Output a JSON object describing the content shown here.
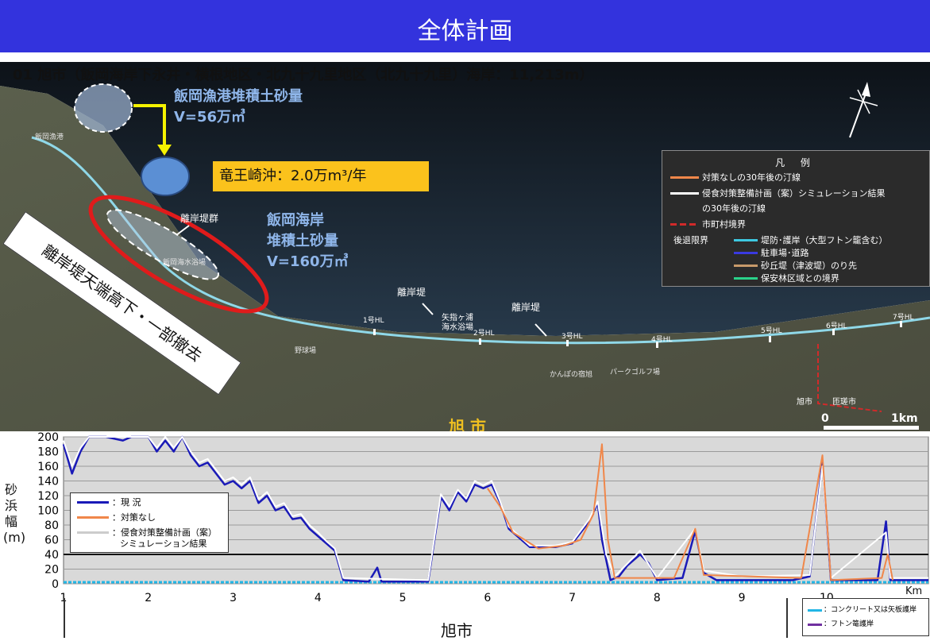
{
  "header": {
    "title": "全体計画"
  },
  "subtitle": "01 旭市（飯岡海岸下永井・横根地区・北九十九里地区（北九十九里）海岸：11,213m）",
  "map": {
    "iioka_port_volume_title": "飯岡漁港堆積土砂量",
    "iioka_port_volume_value": "V=56万㎥",
    "ryuozaki_offshore": "竜王崎沖：2.0万m³/年",
    "iioka_coast_title": "飯岡海岸",
    "iioka_coast_line2": "堆積土砂量",
    "iioka_coast_value": "V=160万㎥",
    "breakwater_group": "離岸堤群",
    "breakwater_note": "離岸堤天端高下・一部撤去",
    "breakwater_label_1": "離岸堤",
    "breakwater_label_2": "離岸堤",
    "place_iioka_port": "飯岡漁港",
    "place_beach": "飯岡海水浴場",
    "place_yasashi": "矢指ヶ浦",
    "place_yasashi_2": "海水浴場",
    "place_baseball": "野球場",
    "place_kanpo": "かんぽの宿旭",
    "place_park_golf": "パークゴルフ場",
    "place_asahi": "旭市",
    "place_sosa": "匝瑳市",
    "place_asahi_big": "旭 市",
    "hl_labels": [
      "1号HL",
      "2号HL",
      "3号HL",
      "4号HL",
      "5号HL",
      "6号HL",
      "7号HL"
    ],
    "scale_zero": "0",
    "scale_one": "1km"
  },
  "legend": {
    "title": "凡 例",
    "item1": "対策なしの30年後の汀線",
    "item2": "侵食対策整備計画（案）シミュレーション結果",
    "item2b": "の30年後の汀線",
    "item3": "市町村境界",
    "retreat_label": "後退限界",
    "item4": "堤防･護岸（大型フトン籠含む）",
    "item5": "駐車場･道路",
    "item6": "砂丘堤（津波堤）のり先",
    "item7": "保安林区域との境界",
    "colors": {
      "no_measures": "#f0874a",
      "simulation": "#ffffff",
      "boundary": "#d12a2a",
      "seawall": "#3ec8e0",
      "parking": "#3a3ae0",
      "dune": "#c89a6a",
      "forest": "#2ad28a"
    }
  },
  "chart_data": {
    "type": "line",
    "ylabel": "砂浜幅(m)",
    "xlabel": "旭市",
    "x_unit": "Km",
    "xlim": [
      1,
      11.2
    ],
    "ylim": [
      0,
      200
    ],
    "yticks": [
      0,
      20,
      40,
      60,
      80,
      100,
      120,
      140,
      160,
      180,
      200
    ],
    "xticks": [
      1,
      2,
      3,
      4,
      5,
      6,
      7,
      8,
      9,
      10
    ],
    "reference_line": 40,
    "legend": [
      "：現 況",
      "：対策なし",
      "：侵食対策整備計画（案）",
      "シミュレーション結果"
    ],
    "series": [
      {
        "name": "現 況",
        "color": "#1a1ab8",
        "points": [
          [
            1,
            190
          ],
          [
            1.1,
            150
          ],
          [
            1.2,
            180
          ],
          [
            1.3,
            200
          ],
          [
            1.5,
            210
          ],
          [
            1.7,
            195
          ],
          [
            1.8,
            220
          ],
          [
            2.0,
            210
          ],
          [
            2.1,
            180
          ],
          [
            2.2,
            195
          ],
          [
            2.3,
            180
          ],
          [
            2.4,
            200
          ],
          [
            2.5,
            175
          ],
          [
            2.6,
            160
          ],
          [
            2.7,
            165
          ],
          [
            2.8,
            150
          ],
          [
            2.9,
            135
          ],
          [
            3.0,
            140
          ],
          [
            3.1,
            130
          ],
          [
            3.2,
            140
          ],
          [
            3.3,
            110
          ],
          [
            3.4,
            120
          ],
          [
            3.5,
            100
          ],
          [
            3.6,
            105
          ],
          [
            3.7,
            88
          ],
          [
            3.8,
            90
          ],
          [
            3.9,
            75
          ],
          [
            4.0,
            65
          ],
          [
            4.1,
            55
          ],
          [
            4.2,
            45
          ],
          [
            4.3,
            5
          ],
          [
            4.6,
            3
          ],
          [
            4.7,
            22
          ],
          [
            4.75,
            3
          ],
          [
            5.3,
            3
          ],
          [
            5.45,
            118
          ],
          [
            5.55,
            100
          ],
          [
            5.65,
            125
          ],
          [
            5.75,
            112
          ],
          [
            5.85,
            135
          ],
          [
            5.95,
            130
          ],
          [
            6.05,
            135
          ],
          [
            6.15,
            110
          ],
          [
            6.25,
            75
          ],
          [
            6.5,
            50
          ],
          [
            6.8,
            50
          ],
          [
            7.0,
            55
          ],
          [
            7.2,
            85
          ],
          [
            7.3,
            110
          ],
          [
            7.35,
            60
          ],
          [
            7.45,
            5
          ],
          [
            7.55,
            10
          ],
          [
            7.65,
            25
          ],
          [
            7.8,
            40
          ],
          [
            7.9,
            28
          ],
          [
            8.0,
            5
          ],
          [
            8.3,
            8
          ],
          [
            8.45,
            72
          ],
          [
            8.55,
            15
          ],
          [
            8.7,
            5
          ],
          [
            9.6,
            5
          ],
          [
            9.8,
            10
          ],
          [
            9.95,
            165
          ],
          [
            10.05,
            5
          ],
          [
            10.6,
            5
          ],
          [
            10.7,
            85
          ],
          [
            10.75,
            5
          ],
          [
            11.2,
            5
          ]
        ]
      },
      {
        "name": "対策なし",
        "color": "#f0874a",
        "points": [
          [
            6.0,
            130
          ],
          [
            6.15,
            105
          ],
          [
            6.3,
            70
          ],
          [
            6.6,
            48
          ],
          [
            6.9,
            52
          ],
          [
            7.1,
            60
          ],
          [
            7.25,
            95
          ],
          [
            7.35,
            190
          ],
          [
            7.42,
            60
          ],
          [
            7.5,
            8
          ],
          [
            8.2,
            8
          ],
          [
            8.45,
            75
          ],
          [
            8.55,
            12
          ],
          [
            9.7,
            8
          ],
          [
            9.95,
            175
          ],
          [
            10.05,
            5
          ],
          [
            10.65,
            8
          ],
          [
            10.72,
            40
          ],
          [
            10.78,
            5
          ]
        ]
      },
      {
        "name": "侵食対策整備計画（案） シミュレーション結果",
        "color": "#ffffff",
        "points": [
          [
            1,
            195
          ],
          [
            1.1,
            160
          ],
          [
            1.2,
            185
          ],
          [
            1.3,
            205
          ],
          [
            1.5,
            215
          ],
          [
            1.7,
            200
          ],
          [
            1.8,
            225
          ],
          [
            2.0,
            215
          ],
          [
            2.1,
            185
          ],
          [
            2.2,
            200
          ],
          [
            2.3,
            185
          ],
          [
            2.4,
            205
          ],
          [
            2.5,
            180
          ],
          [
            2.6,
            165
          ],
          [
            2.7,
            170
          ],
          [
            2.8,
            155
          ],
          [
            2.9,
            140
          ],
          [
            3.0,
            145
          ],
          [
            3.1,
            135
          ],
          [
            3.2,
            145
          ],
          [
            3.3,
            115
          ],
          [
            3.4,
            125
          ],
          [
            3.5,
            105
          ],
          [
            3.6,
            110
          ],
          [
            3.7,
            92
          ],
          [
            3.8,
            95
          ],
          [
            3.9,
            80
          ],
          [
            4.0,
            70
          ],
          [
            4.1,
            58
          ],
          [
            4.2,
            48
          ],
          [
            4.3,
            8
          ],
          [
            5.3,
            5
          ],
          [
            5.45,
            122
          ],
          [
            5.55,
            105
          ],
          [
            5.65,
            128
          ],
          [
            5.75,
            116
          ],
          [
            5.85,
            140
          ],
          [
            5.95,
            134
          ],
          [
            6.05,
            140
          ],
          [
            6.15,
            112
          ],
          [
            6.25,
            78
          ],
          [
            6.5,
            52
          ],
          [
            6.8,
            52
          ],
          [
            7.0,
            57
          ],
          [
            7.2,
            88
          ],
          [
            7.3,
            112
          ],
          [
            7.4,
            40
          ],
          [
            7.5,
            10
          ],
          [
            7.8,
            45
          ],
          [
            8.0,
            8
          ],
          [
            8.45,
            75
          ],
          [
            8.55,
            18
          ],
          [
            9.0,
            10
          ],
          [
            9.8,
            12
          ],
          [
            9.95,
            160
          ],
          [
            10.05,
            8
          ],
          [
            10.7,
            70
          ],
          [
            10.75,
            8
          ],
          [
            11.2,
            8
          ]
        ]
      }
    ]
  },
  "bottom_legend": {
    "item1": "：コンクリート又は矢板護岸",
    "item2": "：フトン篭護岸",
    "color1": "#22b6e6",
    "color2": "#7030a0"
  }
}
